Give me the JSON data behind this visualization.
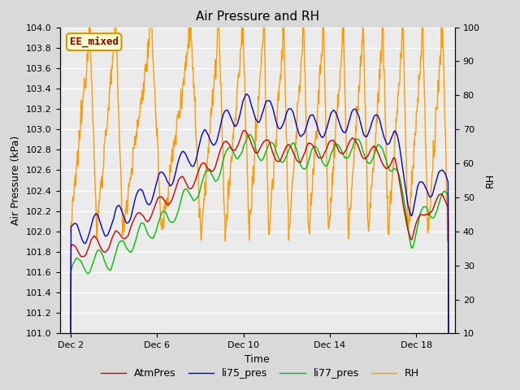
{
  "title": "Air Pressure and RH",
  "xlabel": "Time",
  "ylabel_left": "Air Pressure (kPa)",
  "ylabel_right": "RH",
  "annotation": "EE_mixed",
  "ylim_left": [
    101.0,
    104.0
  ],
  "ylim_right": [
    10,
    100
  ],
  "yticks_left": [
    101.0,
    101.2,
    101.4,
    101.6,
    101.8,
    102.0,
    102.2,
    102.4,
    102.6,
    102.8,
    103.0,
    103.2,
    103.4,
    103.6,
    103.8,
    104.0
  ],
  "yticks_right": [
    10,
    20,
    30,
    40,
    50,
    60,
    70,
    80,
    90,
    100
  ],
  "xtick_labels": [
    "Dec 2",
    "Dec 6",
    "Dec 10",
    "Dec 14",
    "Dec 18"
  ],
  "xtick_positions": [
    2,
    6,
    10,
    14,
    18
  ],
  "xlim": [
    1.5,
    19.8
  ],
  "colors": {
    "AtmPres": "#cc0000",
    "li75_pres": "#0000cc",
    "li77_pres": "#00bb00",
    "RH": "#ff9900"
  },
  "linewidth": 1.0,
  "background_color": "#d9d9d9",
  "plot_bg_color": "#ebebeb",
  "title_fontsize": 11,
  "label_fontsize": 9,
  "tick_fontsize": 8,
  "legend_fontsize": 9,
  "annotation_fontsize": 9,
  "annotation_color": "#8b0000",
  "annotation_bg": "#ffffcc",
  "annotation_border": "#cc9900",
  "grid_color": "#ffffff",
  "grid_linewidth": 1.0,
  "fig_width": 6.4,
  "fig_height": 4.8,
  "dpi": 100
}
